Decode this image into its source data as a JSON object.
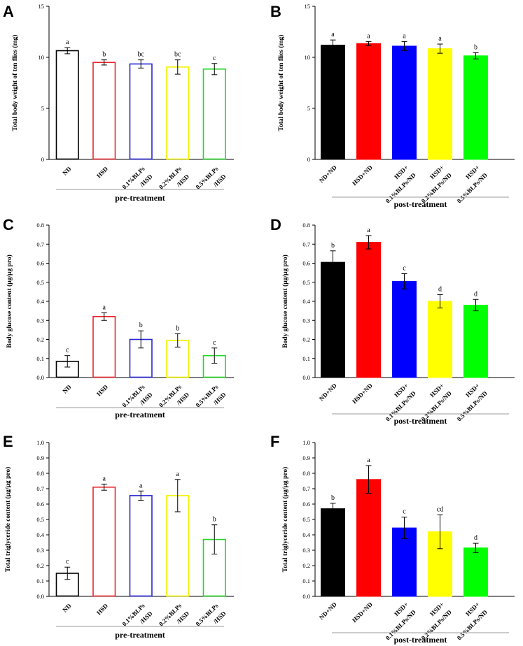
{
  "chart_data": [
    {
      "panel": "A",
      "type": "bar",
      "style": "outline",
      "ylabel": "Total body weight of ten flies (mg)",
      "ylim": [
        0,
        15
      ],
      "yticks": [
        "0",
        "5",
        "10",
        "15"
      ],
      "group_label": "pre-treatment",
      "categories": [
        [
          "ND"
        ],
        [
          "HSD"
        ],
        [
          "0.1%BLPs",
          "/HSD"
        ],
        [
          "0.2%BLPs",
          "/HSD"
        ],
        [
          "0.5%BLPs",
          "/HSD"
        ]
      ],
      "values": [
        10.65,
        9.5,
        9.35,
        9.05,
        8.85
      ],
      "errors": [
        0.3,
        0.25,
        0.4,
        0.7,
        0.55
      ],
      "letters": [
        "a",
        "b",
        "bc",
        "bc",
        "c"
      ],
      "colors": [
        "#000000",
        "#e8262b",
        "#2626d6",
        "#f2f200",
        "#20d820"
      ]
    },
    {
      "panel": "B",
      "type": "bar",
      "style": "filled",
      "ylabel": "Total body weight of ten flies (mg)",
      "ylim": [
        0,
        15
      ],
      "yticks": [
        "0",
        "5",
        "10",
        "15"
      ],
      "group_label": "post-treatment",
      "categories": [
        [
          "ND+ND"
        ],
        [
          "HSD+ND"
        ],
        [
          "HSD+",
          "0.1%BLPs/ND"
        ],
        [
          "HSD+",
          "0.2%BLPs/ND"
        ],
        [
          "HSD+",
          "0.5%BLPs/ND"
        ]
      ],
      "values": [
        11.2,
        11.35,
        11.1,
        10.85,
        10.15
      ],
      "errors": [
        0.5,
        0.2,
        0.45,
        0.45,
        0.3
      ],
      "letters": [
        "a",
        "a",
        "a",
        "a",
        "b"
      ],
      "colors": [
        "#000000",
        "#ff0000",
        "#0000ff",
        "#ffff00",
        "#00ff00"
      ]
    },
    {
      "panel": "C",
      "type": "bar",
      "style": "outline",
      "ylabel": "Body glucose content (μg/μg pro)",
      "ylim": [
        0,
        0.8
      ],
      "yticks": [
        "0.0",
        "0.1",
        "0.2",
        "0.3",
        "0.4",
        "0.5",
        "0.6",
        "0.7",
        "0.8"
      ],
      "group_label": "pre-treatment",
      "categories": [
        [
          "ND"
        ],
        [
          "HSD"
        ],
        [
          "0.1%BLPs",
          "/HSD"
        ],
        [
          "0.2%BLPs",
          "/HSD"
        ],
        [
          "0.5%BLPs",
          "/HSD"
        ]
      ],
      "values": [
        0.085,
        0.32,
        0.2,
        0.195,
        0.115
      ],
      "errors": [
        0.03,
        0.02,
        0.045,
        0.035,
        0.04
      ],
      "letters": [
        "c",
        "a",
        "b",
        "b",
        "c"
      ],
      "colors": [
        "#000000",
        "#e8262b",
        "#2626d6",
        "#f2f200",
        "#20d820"
      ]
    },
    {
      "panel": "D",
      "type": "bar",
      "style": "filled",
      "ylabel": "Body glucose content (μg/μg pro)",
      "ylim": [
        0,
        0.8
      ],
      "yticks": [
        "0.0",
        "0.1",
        "0.2",
        "0.3",
        "0.4",
        "0.5",
        "0.6",
        "0.7",
        "0.8"
      ],
      "group_label": "post-treatment",
      "categories": [
        [
          "ND+ND"
        ],
        [
          "HSD+ND"
        ],
        [
          "HSD+",
          "0.1%BLPs/ND"
        ],
        [
          "HSD+",
          "0.2%BLPs/ND"
        ],
        [
          "HSD+",
          "0.5%BLPs/ND"
        ]
      ],
      "values": [
        0.605,
        0.71,
        0.505,
        0.4,
        0.38
      ],
      "errors": [
        0.06,
        0.035,
        0.04,
        0.035,
        0.03
      ],
      "letters": [
        "b",
        "a",
        "c",
        "d",
        "d"
      ],
      "colors": [
        "#000000",
        "#ff0000",
        "#0000ff",
        "#ffff00",
        "#00ff00"
      ]
    },
    {
      "panel": "E",
      "type": "bar",
      "style": "outline",
      "ylabel": "Total triglyceride content (μg/μg pro)",
      "ylim": [
        0,
        1.0
      ],
      "yticks": [
        "0.0",
        "0.1",
        "0.2",
        "0.3",
        "0.4",
        "0.5",
        "0.6",
        "0.7",
        "0.8",
        "0.9",
        "1.0"
      ],
      "group_label": "pre-treatment",
      "categories": [
        [
          "ND"
        ],
        [
          "HSD"
        ],
        [
          "0.1%BLPs",
          "/HSD"
        ],
        [
          "0.2%BLPs",
          "/HSD"
        ],
        [
          "0.5%BLPs",
          "/HSD"
        ]
      ],
      "values": [
        0.15,
        0.71,
        0.655,
        0.655,
        0.37
      ],
      "errors": [
        0.04,
        0.02,
        0.03,
        0.105,
        0.095
      ],
      "letters": [
        "c",
        "a",
        "a",
        "a",
        "b"
      ],
      "colors": [
        "#000000",
        "#e8262b",
        "#2626d6",
        "#f2f200",
        "#20d820"
      ]
    },
    {
      "panel": "F",
      "type": "bar",
      "style": "filled",
      "ylabel": "Total triglyceride content (μg/μg pro)",
      "ylim": [
        0,
        1.0
      ],
      "yticks": [
        "0.0",
        "0.1",
        "0.2",
        "0.3",
        "0.4",
        "0.5",
        "0.6",
        "0.7",
        "0.8",
        "0.9",
        "1.0"
      ],
      "group_label": "post-treatment",
      "categories": [
        [
          "ND+ND"
        ],
        [
          "HSD+ND"
        ],
        [
          "HSD+",
          "0.1%BLPs/ND"
        ],
        [
          "HSD+",
          "0.2%BLPs/ND"
        ],
        [
          "HSD+",
          "0.5%BLPs/ND"
        ]
      ],
      "values": [
        0.57,
        0.76,
        0.445,
        0.42,
        0.315
      ],
      "errors": [
        0.035,
        0.09,
        0.07,
        0.11,
        0.03
      ],
      "letters": [
        "b",
        "a",
        "c",
        "cd",
        "d"
      ],
      "colors": [
        "#000000",
        "#ff0000",
        "#0000ff",
        "#ffff00",
        "#00ff00"
      ]
    }
  ]
}
